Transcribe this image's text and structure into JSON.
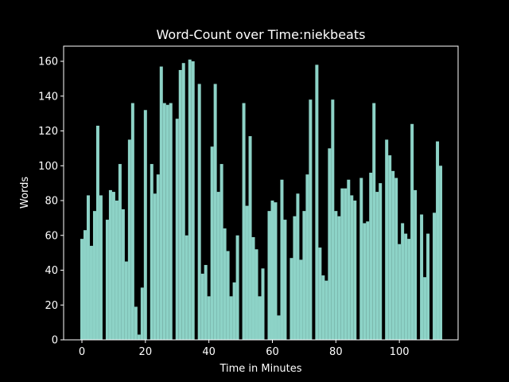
{
  "chart_data": {
    "type": "bar",
    "title": "Word-Count over Time:niekbeats",
    "xlabel": "Time in Minutes",
    "ylabel": "Words",
    "color": "#8dd3c7",
    "x": [
      0,
      1,
      2,
      3,
      4,
      5,
      6,
      7,
      8,
      9,
      10,
      11,
      12,
      13,
      14,
      15,
      16,
      17,
      18,
      19,
      20,
      21,
      22,
      23,
      24,
      25,
      26,
      27,
      28,
      29,
      30,
      31,
      32,
      33,
      34,
      35,
      36,
      37,
      38,
      39,
      40,
      41,
      42,
      43,
      44,
      45,
      46,
      47,
      48,
      49,
      50,
      51,
      52,
      53,
      54,
      55,
      56,
      57,
      58,
      59,
      60,
      61,
      62,
      63,
      64,
      65,
      66,
      67,
      68,
      69,
      70,
      71,
      72,
      73,
      74,
      75,
      76,
      77,
      78,
      79,
      80,
      81,
      82,
      83,
      84,
      85,
      86,
      87,
      88,
      89,
      90,
      91,
      92,
      93,
      94,
      95,
      96,
      97,
      98,
      99,
      100,
      101,
      102,
      103,
      104,
      105,
      106,
      107,
      108,
      109,
      110,
      111,
      112,
      113
    ],
    "values": [
      58,
      63,
      83,
      54,
      74,
      123,
      83,
      0,
      69,
      86,
      85,
      80,
      101,
      75,
      45,
      115,
      136,
      19,
      3,
      30,
      132,
      0,
      101,
      84,
      95,
      157,
      136,
      135,
      136,
      0,
      127,
      155,
      159,
      60,
      161,
      160,
      0,
      147,
      38,
      43,
      25,
      111,
      147,
      85,
      101,
      64,
      51,
      25,
      33,
      60,
      0,
      136,
      77,
      117,
      59,
      52,
      25,
      41,
      0,
      74,
      80,
      79,
      14,
      92,
      69,
      0,
      47,
      71,
      84,
      46,
      74,
      95,
      138,
      0,
      158,
      53,
      37,
      34,
      110,
      138,
      74,
      71,
      87,
      87,
      92,
      83,
      80,
      0,
      93,
      67,
      68,
      96,
      136,
      85,
      90,
      0,
      115,
      106,
      97,
      93,
      55,
      67,
      61,
      58,
      124,
      86,
      0,
      72,
      36,
      61,
      0,
      73,
      114,
      100
    ],
    "xlim": [
      -5.76,
      118.5
    ],
    "ylim": [
      0,
      168.7
    ],
    "xticks": [
      0,
      20,
      40,
      60,
      80,
      100
    ],
    "yticks": [
      0,
      20,
      40,
      60,
      80,
      100,
      120,
      140,
      160
    ]
  }
}
